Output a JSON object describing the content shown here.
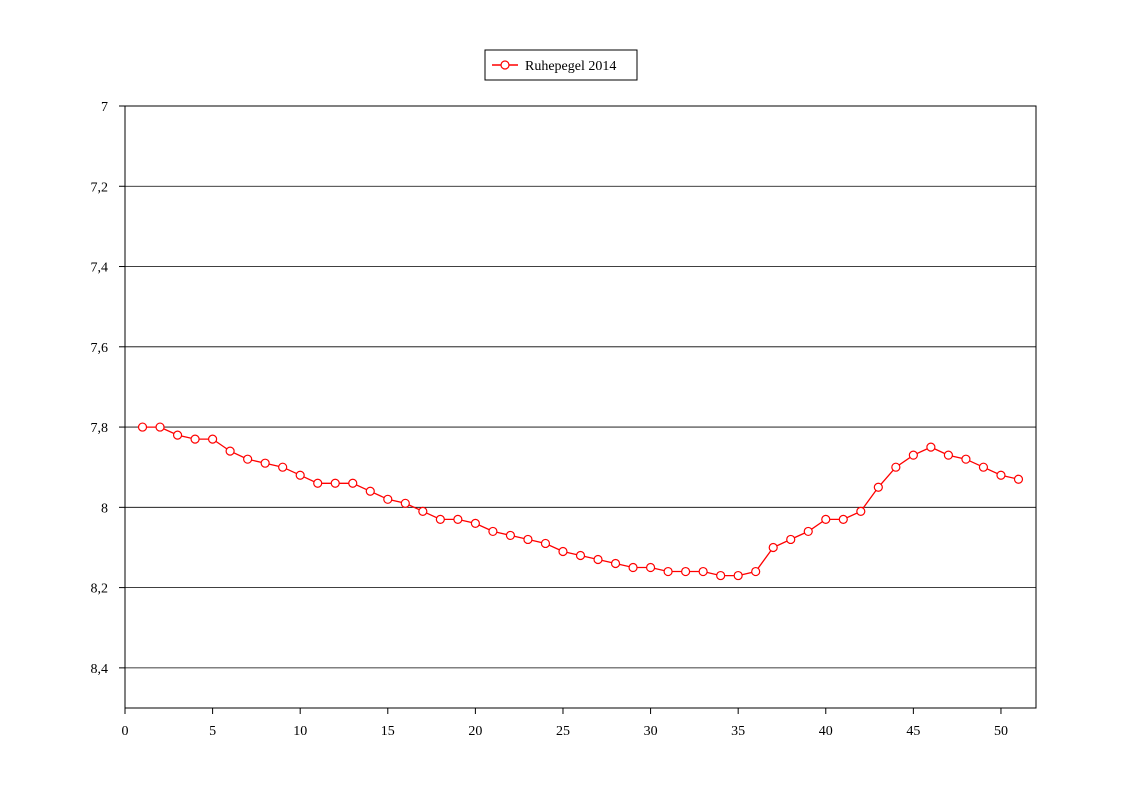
{
  "chart_data": {
    "type": "line",
    "title": "",
    "xlabel": "",
    "ylabel": "",
    "xlim": [
      0,
      52
    ],
    "ylim": [
      7,
      8.5
    ],
    "y_inverted": true,
    "x_ticks": [
      0,
      5,
      10,
      15,
      20,
      25,
      30,
      35,
      40,
      45,
      50
    ],
    "x_tick_labels": [
      "0",
      "5",
      "10",
      "15",
      "20",
      "25",
      "30",
      "35",
      "40",
      "45",
      "50"
    ],
    "y_ticks": [
      7,
      7.2,
      7.4,
      7.6,
      7.8,
      8,
      8.2,
      8.4
    ],
    "y_tick_labels": [
      "7",
      "7,2",
      "7,4",
      "7,6",
      "7,8",
      "8",
      "8,2",
      "8,4"
    ],
    "grid": "horizontal",
    "legend_position": "top-center",
    "series": [
      {
        "name": "Ruhepegel 2014",
        "color": "#ff0000",
        "marker": "open-circle",
        "x": [
          1,
          2,
          3,
          4,
          5,
          6,
          7,
          8,
          9,
          10,
          11,
          12,
          13,
          14,
          15,
          16,
          17,
          18,
          19,
          20,
          21,
          22,
          23,
          24,
          25,
          26,
          27,
          28,
          29,
          30,
          31,
          32,
          33,
          34,
          35,
          36,
          37,
          38,
          39,
          40,
          41,
          42,
          43,
          44,
          45,
          46,
          47,
          48,
          49,
          50,
          51
        ],
        "values": [
          7.8,
          7.8,
          7.82,
          7.83,
          7.83,
          7.86,
          7.88,
          7.89,
          7.9,
          7.92,
          7.94,
          7.94,
          7.94,
          7.96,
          7.98,
          7.99,
          8.01,
          8.03,
          8.03,
          8.04,
          8.06,
          8.07,
          8.08,
          8.09,
          8.11,
          8.12,
          8.13,
          8.14,
          8.15,
          8.15,
          8.16,
          8.16,
          8.16,
          8.17,
          8.17,
          8.16,
          8.1,
          8.08,
          8.06,
          8.03,
          8.03,
          8.01,
          7.95,
          7.9,
          7.87,
          7.85,
          7.87,
          7.88,
          7.9,
          7.92,
          7.93
        ]
      }
    ]
  }
}
